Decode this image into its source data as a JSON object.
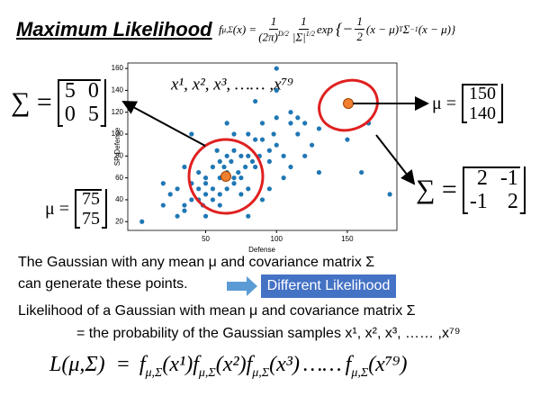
{
  "slide": {
    "title": "Maximum Likelihood",
    "formula": {
      "f": "f",
      "sub": "μ,Σ",
      "arg": "(x) =",
      "frac1": {
        "num": "1",
        "den": "(2π)",
        "den_sup": "D/2"
      },
      "frac2": {
        "num": "1",
        "den": "|Σ|",
        "den_sup": "1/2"
      },
      "exp": "exp",
      "open": "{−",
      "frac3": {
        "num": "1",
        "den": "2"
      },
      "rest": "(x − μ)",
      "rest_sup": "T",
      "sigma": "Σ",
      "sigma_sup": "−1",
      "tail": "(x − μ)}"
    },
    "left_sigma": {
      "label": "∑ =",
      "matrix": [
        [
          5,
          0
        ],
        [
          0,
          5
        ]
      ]
    },
    "left_mu": {
      "label": "μ =",
      "matrix": [
        [
          75
        ],
        [
          75
        ]
      ]
    },
    "right_mu": {
      "label": "μ =",
      "matrix": [
        [
          150
        ],
        [
          140
        ]
      ]
    },
    "right_sigma": {
      "label": "∑ =",
      "matrix": [
        [
          2,
          -1
        ],
        [
          -1,
          2
        ]
      ]
    },
    "text1": "The Gaussian with any mean μ and covariance matrix Σ",
    "text2": "can generate these points.",
    "button": "Different Likelihood",
    "text3": "Likelihood of a Gaussian with mean μ and covariance matrix Σ",
    "text4": "= the probability of the Gaussian samples x¹, x², x³, …… ,x⁷⁹",
    "likelihood": {
      "lhs": "L(μ,Σ)  =",
      "ellipsis": "……",
      "factors": [
        {
          "f": "f",
          "sub": "μ,Σ",
          "arg": "(x¹)"
        },
        {
          "f": "f",
          "sub": "μ,Σ",
          "arg": "(x²)"
        },
        {
          "f": "f",
          "sub": "μ,Σ",
          "arg": "(x³)"
        },
        {
          "f": "f",
          "sub": "μ,Σ",
          "arg": "(x⁷⁹)"
        }
      ]
    }
  },
  "chart_data": {
    "type": "scatter",
    "xlabel": "Defense",
    "ylabel": "SP Defense",
    "annotation": "x¹, x², x³, …… ,x⁷⁹",
    "color": "#1f77b4",
    "xlim": [
      -5,
      185
    ],
    "ylim": [
      12,
      165
    ],
    "xticks": [
      50,
      100,
      150
    ],
    "yticks": [
      20,
      40,
      60,
      80,
      100,
      120,
      140,
      160
    ],
    "x": [
      5,
      20,
      20,
      25,
      30,
      30,
      35,
      35,
      35,
      40,
      40,
      40,
      45,
      45,
      45,
      48,
      50,
      50,
      50,
      50,
      55,
      55,
      55,
      58,
      60,
      60,
      60,
      60,
      63,
      65,
      65,
      65,
      65,
      68,
      70,
      70,
      70,
      70,
      73,
      75,
      75,
      75,
      78,
      80,
      80,
      80,
      80,
      83,
      85,
      85,
      85,
      88,
      90,
      90,
      90,
      95,
      95,
      95,
      98,
      100,
      100,
      100,
      105,
      105,
      110,
      110,
      110,
      115,
      115,
      120,
      120,
      125,
      130,
      130,
      150,
      160,
      165,
      180,
      100
    ],
    "values": [
      20,
      55,
      35,
      45,
      25,
      50,
      35,
      70,
      30,
      40,
      55,
      100,
      50,
      40,
      65,
      35,
      60,
      45,
      55,
      25,
      40,
      70,
      50,
      85,
      60,
      45,
      75,
      35,
      70,
      65,
      50,
      80,
      110,
      75,
      60,
      55,
      85,
      100,
      65,
      60,
      80,
      45,
      70,
      80,
      100,
      50,
      25,
      75,
      70,
      95,
      130,
      80,
      110,
      95,
      40,
      85,
      75,
      50,
      100,
      115,
      90,
      160,
      80,
      60,
      70,
      120,
      110,
      100,
      115,
      80,
      110,
      90,
      65,
      105,
      95,
      65,
      110,
      45,
      140
    ]
  }
}
